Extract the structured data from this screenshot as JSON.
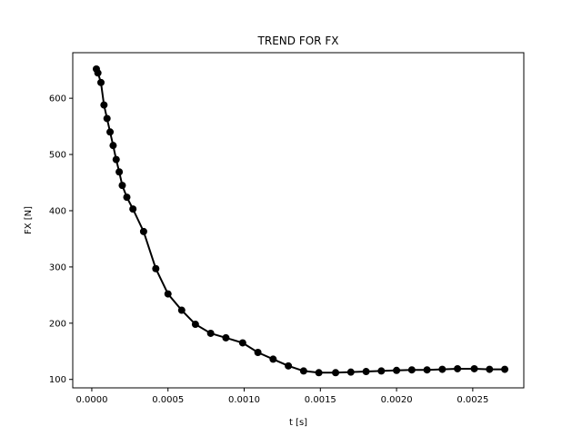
{
  "chart_data": {
    "type": "line",
    "title": "TREND FOR FX",
    "xlabel": "t [s]",
    "ylabel": "FX [N]",
    "xlim": [
      -0.000125,
      0.002835
    ],
    "ylim": [
      85,
      681
    ],
    "xticks": [
      0.0,
      0.0005,
      0.001,
      0.0015,
      0.002,
      0.0025
    ],
    "xtick_labels": [
      "0.0000",
      "0.0005",
      "0.0010",
      "0.0015",
      "0.0020",
      "0.0025"
    ],
    "yticks": [
      100,
      200,
      300,
      400,
      500,
      600
    ],
    "ytick_labels": [
      "100",
      "200",
      "300",
      "400",
      "500",
      "600"
    ],
    "grid": false,
    "legend": false,
    "series": [
      {
        "color": "#000000",
        "marker": "circle",
        "x": [
          3e-05,
          4e-05,
          6e-05,
          8e-05,
          0.0001,
          0.00012,
          0.00014,
          0.00016,
          0.00018,
          0.0002,
          0.00023,
          0.00027,
          0.00034,
          0.00042,
          0.0005,
          0.00059,
          0.00068,
          0.00078,
          0.00088,
          0.00099,
          0.00109,
          0.00119,
          0.00129,
          0.00139,
          0.00149,
          0.0016,
          0.0017,
          0.0018,
          0.0019,
          0.002,
          0.0021,
          0.0022,
          0.0023,
          0.0024,
          0.00251,
          0.00261,
          0.00271
        ],
        "y": [
          652,
          645,
          628,
          588,
          564,
          540,
          516,
          491,
          469,
          445,
          424,
          403,
          363,
          297,
          252,
          223,
          198,
          182,
          174,
          165,
          148,
          136,
          124,
          115,
          112,
          112,
          113,
          114,
          115,
          116,
          117,
          117,
          118,
          119,
          119,
          118,
          118
        ]
      }
    ]
  }
}
